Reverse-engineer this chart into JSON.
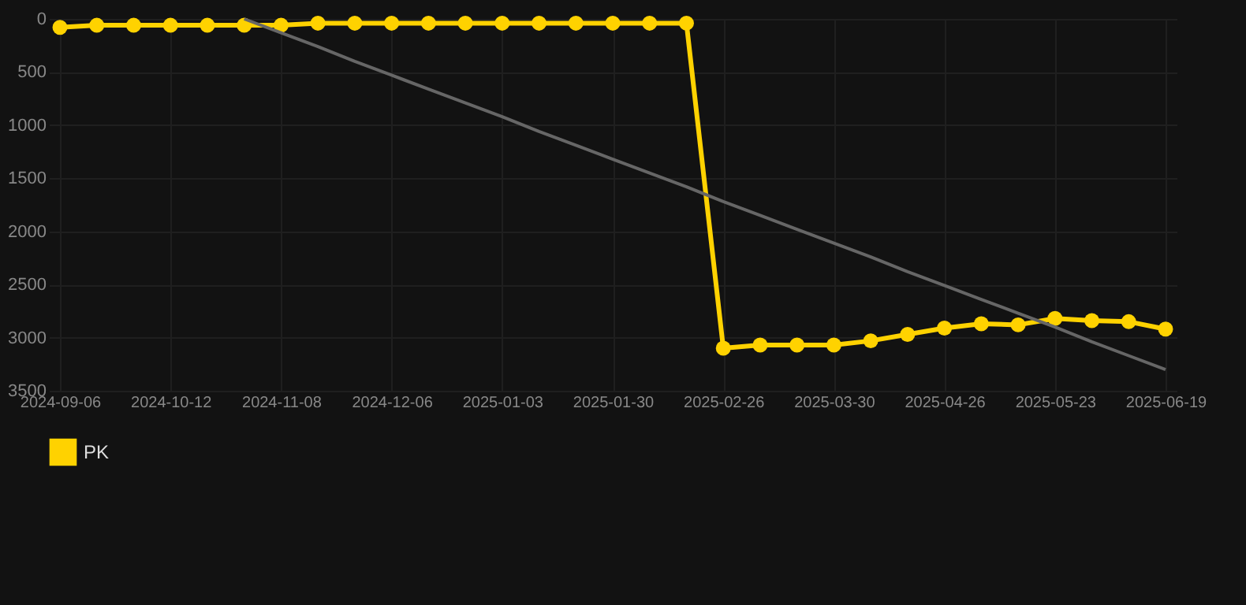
{
  "chart_data": {
    "type": "line",
    "categories": [
      "2024-09-06",
      null,
      null,
      "2024-10-12",
      null,
      null,
      "2024-11-08",
      null,
      null,
      "2024-12-06",
      null,
      null,
      "2025-01-03",
      null,
      null,
      "2025-01-30",
      null,
      null,
      "2025-02-26",
      null,
      null,
      "2025-03-30",
      null,
      null,
      "2025-04-26",
      null,
      null,
      "2025-05-23",
      null,
      null,
      "2025-06-19"
    ],
    "series": [
      {
        "name": "PK",
        "color": "#ffd200",
        "values": [
          80,
          60,
          60,
          60,
          60,
          60,
          60,
          40,
          40,
          40,
          40,
          40,
          40,
          40,
          40,
          40,
          40,
          40,
          3100,
          3070,
          3070,
          3070,
          3030,
          2970,
          2910,
          2870,
          2880,
          2820,
          2840,
          2850,
          2920
        ]
      },
      {
        "type": "line",
        "marker": "none",
        "color": "#666666",
        "values": [
          null,
          null,
          null,
          null,
          null,
          0,
          130,
          260,
          400,
          530,
          660,
          790,
          920,
          1060,
          1190,
          1320,
          1450,
          1580,
          1720,
          1850,
          1980,
          2110,
          2240,
          2380,
          2510,
          2640,
          2770,
          2900,
          3040,
          3170,
          3300
        ]
      }
    ],
    "ylim": [
      3500,
      0
    ],
    "yticks": [
      0,
      500,
      1000,
      1500,
      2000,
      2500,
      3000,
      3500
    ],
    "grid": true,
    "legend": "bottom",
    "marker": "circle"
  }
}
